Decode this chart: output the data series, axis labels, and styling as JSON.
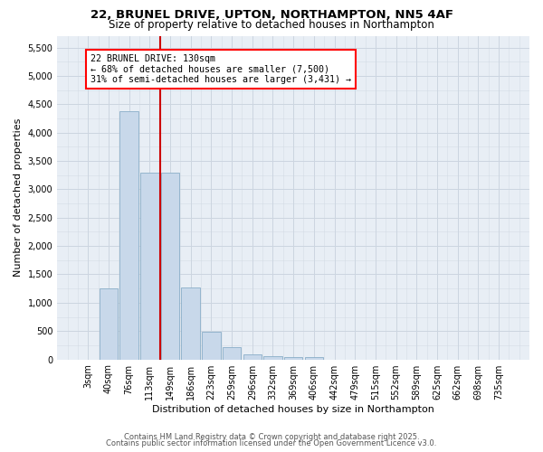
{
  "title_line1": "22, BRUNEL DRIVE, UPTON, NORTHAMPTON, NN5 4AF",
  "title_line2": "Size of property relative to detached houses in Northampton",
  "xlabel": "Distribution of detached houses by size in Northampton",
  "ylabel": "Number of detached properties",
  "categories": [
    "3sqm",
    "40sqm",
    "76sqm",
    "113sqm",
    "149sqm",
    "186sqm",
    "223sqm",
    "259sqm",
    "296sqm",
    "332sqm",
    "369sqm",
    "406sqm",
    "442sqm",
    "479sqm",
    "515sqm",
    "552sqm",
    "589sqm",
    "625sqm",
    "662sqm",
    "698sqm",
    "735sqm"
  ],
  "values": [
    0,
    1250,
    4380,
    3300,
    3300,
    1270,
    490,
    210,
    85,
    60,
    35,
    35,
    0,
    0,
    0,
    0,
    0,
    0,
    0,
    0,
    0
  ],
  "bar_color": "#c8d8ea",
  "bar_edge_color": "#8aaec8",
  "vline_x": 3.5,
  "vline_color": "#cc0000",
  "annotation_text": "22 BRUNEL DRIVE: 130sqm\n← 68% of detached houses are smaller (7,500)\n31% of semi-detached houses are larger (3,431) →",
  "ylim": [
    0,
    5700
  ],
  "yticks": [
    0,
    500,
    1000,
    1500,
    2000,
    2500,
    3000,
    3500,
    4000,
    4500,
    5000,
    5500
  ],
  "grid_color": "#ccd5e0",
  "background_color": "#e8eef5",
  "footer_line1": "Contains HM Land Registry data © Crown copyright and database right 2025.",
  "footer_line2": "Contains public sector information licensed under the Open Government Licence v3.0."
}
